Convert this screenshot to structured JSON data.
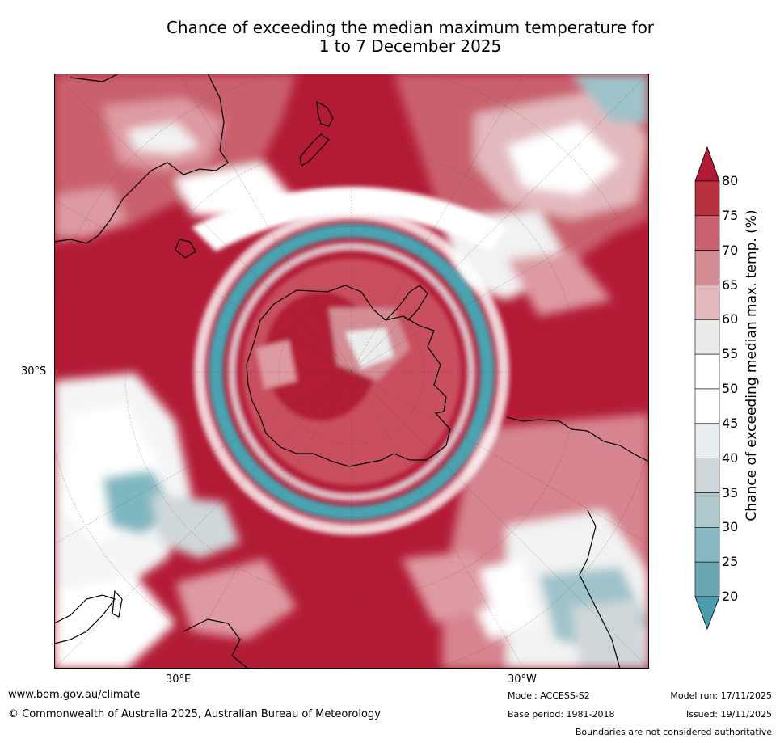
{
  "title": {
    "line1": "Chance of exceeding the median maximum temperature for",
    "line2": "1 to 7 December 2025"
  },
  "map": {
    "projection": "south-polar-stereographic",
    "axis_labels": {
      "left": "30°S",
      "bottom_left": "30°E",
      "bottom_right": "30°W"
    },
    "dominant_colors": {
      "deep_red": "#b31b35",
      "red": "#c94f5f",
      "pink": "#de9aa3",
      "white": "#ffffff",
      "light_grey": "#e6e9ec",
      "teal": "#4aa3b1"
    }
  },
  "colorbar": {
    "title": "Chance of exceeding median max. temp. (%)",
    "ticks": [
      "80",
      "75",
      "70",
      "65",
      "60",
      "55",
      "50",
      "45",
      "40",
      "35",
      "30",
      "25",
      "20"
    ],
    "bands": [
      {
        "from": 75,
        "to": 80,
        "color": "#b6303f"
      },
      {
        "from": 70,
        "to": 75,
        "color": "#c96170"
      },
      {
        "from": 65,
        "to": 70,
        "color": "#d48c95"
      },
      {
        "from": 60,
        "to": 65,
        "color": "#e3b9bd"
      },
      {
        "from": 55,
        "to": 60,
        "color": "#ecebeb"
      },
      {
        "from": 50,
        "to": 55,
        "color": "#ffffff"
      },
      {
        "from": 45,
        "to": 50,
        "color": "#ffffff"
      },
      {
        "from": 40,
        "to": 45,
        "color": "#e8edf0"
      },
      {
        "from": 35,
        "to": 40,
        "color": "#d0d7da"
      },
      {
        "from": 30,
        "to": 35,
        "color": "#aec8cc"
      },
      {
        "from": 25,
        "to": 30,
        "color": "#88b8c1"
      },
      {
        "from": 20,
        "to": 25,
        "color": "#6aa7b1"
      }
    ],
    "over_color": "#b31b35",
    "under_color": "#4a9ead"
  },
  "footer": {
    "website": "www.bom.gov.au/climate",
    "copyright": "© Commonwealth of Australia 2025, Australian Bureau of Meteorology",
    "model": "Model: ACCESS-S2",
    "base_period": "Base period: 1981-2018",
    "model_run": "Model run: 17/11/2025",
    "issued": "Issued: 19/11/2025",
    "disclaimer": "Boundaries are not considered authoritative"
  }
}
